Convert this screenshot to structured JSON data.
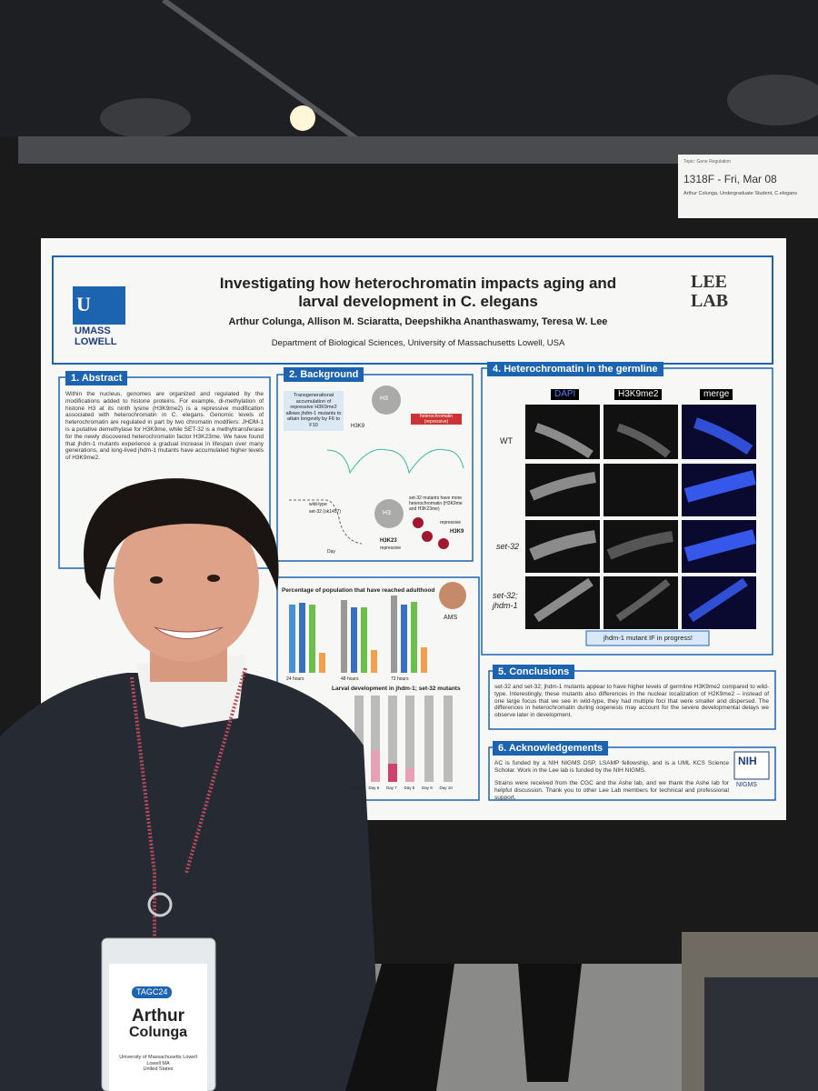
{
  "sign": {
    "topic": "Topic: Gene Regulation",
    "code": "1318F - Fri, Mar 08",
    "presenter": "Arthur Colunga, Undergraduate Student, C.elegans"
  },
  "poster": {
    "logo_left": [
      "UMASS",
      "LOWELL"
    ],
    "logo_right": [
      "LEE",
      "LAB"
    ],
    "title_lines": [
      "Investigating how heterochromatin impacts aging and",
      "larval development in C. elegans"
    ],
    "authors": "Arthur Colunga, Allison M. Sciaratta, Deepshikha Ananthaswamy, Teresa W. Lee",
    "affiliation": "Department of Biological Sciences, University of Massachusetts Lowell, USA",
    "abstract": {
      "title": "1. Abstract",
      "text": "Within the nucleus, genomes are organized and regulated by the modifications added to histone proteins. For example, di-methylation of histone H3 at its ninth lysine (H3K9me2) is a repressive modification associated with heterochromatin in C. elegans. Genomic levels of heterochromatin are regulated in part by two chromatin modifiers: JHDM-1 is a putative demethylase for H3K9me, while SET-32 is a methyltransferase for the newly discovered heterochromatin factor H3K23me. We have found that jhdm-1 mutants experience a gradual increase in lifespan over many generations, and long-lived jhdm-1 mutants have accumulated higher levels of H3K9me2."
    },
    "background": {
      "title": "2. Background",
      "box": "Transgenerational accumulation of repressive H3K9me2 allows jhdm-1 mutants to attain longevity by F6 to F10",
      "label_h3": "H3",
      "label_k9": "H3K9",
      "label_hetero": "heterochromatin (repressive)",
      "label_wt": "wild-type",
      "label_set32": "set-32 (ok1457)",
      "label_more": "set-32 mutants have more heterochromatin (H3K9me and H3K23me)",
      "label_k23": "H3K23",
      "label_repressive": "repressive",
      "x_axis": "Day"
    },
    "charts": {
      "chart1_title": "Percentage of population that have reached adulthood",
      "chart1_x": [
        "24 hours",
        "48 hours",
        "72 hours"
      ],
      "chart2_title": "Larval development in jhdm-1; set-32 mutants",
      "chart2_x": [
        "Day 5",
        "Day 6",
        "Day 7",
        "Day 8",
        "Day 9",
        "Day 10"
      ],
      "ams": "AMS"
    },
    "germline": {
      "title": "4. Heterochromatin in the germline",
      "columns": [
        "DAPI",
        "H3K9me2",
        "merge"
      ],
      "rows": [
        "WT",
        "set-32",
        "set-32;\njhdm-1"
      ],
      "caption": "jhdm-1 mutant IF in progress!"
    },
    "conclusions": {
      "title": "5. Conclusions",
      "text": "set-32 and set-32; jhdm-1 mutants appear to have higher levels of germline H3K9me2 compared to wild-type. Interestingly, these mutants also differences in the nuclear localization of H2K9me2 – instead of one large focus that we see in wild-type, they had multiple foci that were smaller and dispersed. The differences in heterochromatin during oogenesis may account for the severe developmental delays we observe later in development."
    },
    "acknowledgements": {
      "title": "6. Acknowledgements",
      "text1": "AC is funded by a NIH NIGMS DSP, LSAMP fellowship, and is a UML KCS Science Scholar. Work in the Lee lab is funded by the NIH NIGMS.",
      "text2": "Strains were received from the CGC and the Ashe lab, and we thank the Ashe lab for helpful discussion. Thank you to other Lee Lab members for technical and professional support.",
      "logo": [
        "NIH",
        "NIGMS"
      ]
    }
  },
  "badge": {
    "event": "TAGC24",
    "name": [
      "Arthur",
      "Colunga"
    ],
    "affiliation": [
      "University of Massachusetts Lowell",
      "Lowell MA",
      "United States"
    ]
  }
}
